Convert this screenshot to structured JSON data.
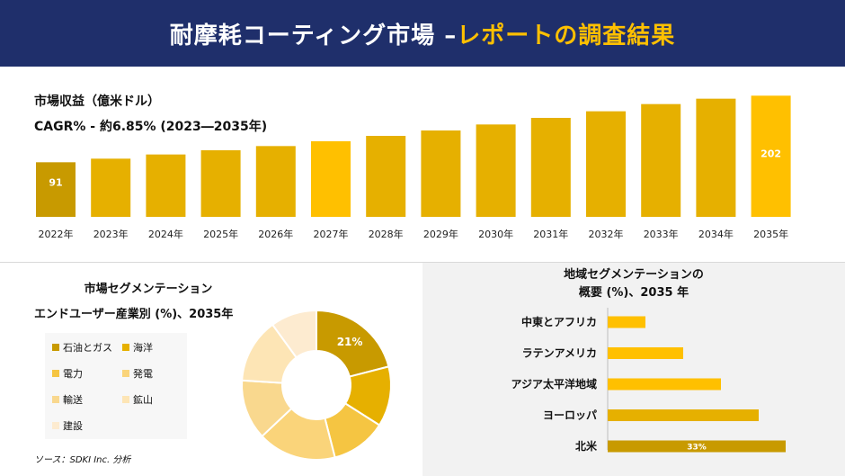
{
  "header": {
    "title_main": "耐摩耗コーティング市場 –",
    "title_accent": "レポートの調査結果"
  },
  "revenue": {
    "title": "市場収益（億米ドル）",
    "cagr": "CAGR% - 約6.85% (2023―2035年)"
  },
  "segment": {
    "title_line1": "市場セグメンテーション",
    "title_line2": "エンドユーザー産業別 (%)、2035年"
  },
  "region": {
    "title_line1": "地域セグメンテーションの",
    "title_line2": "概要 (%)、2035 年"
  },
  "source": "ソース：SDKI Inc. 分析",
  "chart_data": [
    {
      "type": "bar",
      "categories": [
        "2022年",
        "2023年",
        "2024年",
        "2025年",
        "2026年",
        "2027年",
        "2028年",
        "2029年",
        "2030年",
        "2031年",
        "2032年",
        "2033年",
        "2034年",
        "2035年"
      ],
      "values": [
        91,
        97,
        104,
        111,
        118,
        126,
        135,
        144,
        154,
        165,
        176,
        188,
        197,
        202
      ],
      "value_labels": {
        "0": "91",
        "13": "202"
      },
      "ylim": [
        0,
        210
      ],
      "colors": [
        "#c89a00",
        "#e6b000",
        "#e6b000",
        "#e6b000",
        "#e6b000",
        "#ffc000",
        "#e6b000",
        "#e6b000",
        "#e6b000",
        "#e6b000",
        "#e6b000",
        "#e6b000",
        "#e6b000",
        "#ffc000"
      ]
    },
    {
      "type": "pie",
      "donut": true,
      "categories": [
        "石油とガス",
        "海洋",
        "電力",
        "発電",
        "輸送",
        "鉱山",
        "建設"
      ],
      "values": [
        21,
        13,
        12,
        17,
        13,
        14,
        10
      ],
      "labels": [
        "21%",
        "",
        "",
        "",
        "",
        "",
        ""
      ],
      "colors": [
        "#c89a00",
        "#e6b000",
        "#f5c542",
        "#fad47a",
        "#f9d88e",
        "#fde5b5",
        "#fdebd0"
      ]
    },
    {
      "type": "bar",
      "orientation": "horizontal",
      "categories": [
        "中東とアフリカ",
        "ラテンアメリカ",
        "アジア太平洋地域",
        "ヨーロッパ",
        "北米"
      ],
      "values": [
        7,
        14,
        21,
        28,
        33
      ],
      "labels": [
        "",
        "",
        "",
        "",
        "33%"
      ],
      "xlim": [
        0,
        35
      ],
      "colors": [
        "#ffc000",
        "#ffc000",
        "#ffc000",
        "#e6b000",
        "#c89a00"
      ]
    }
  ]
}
